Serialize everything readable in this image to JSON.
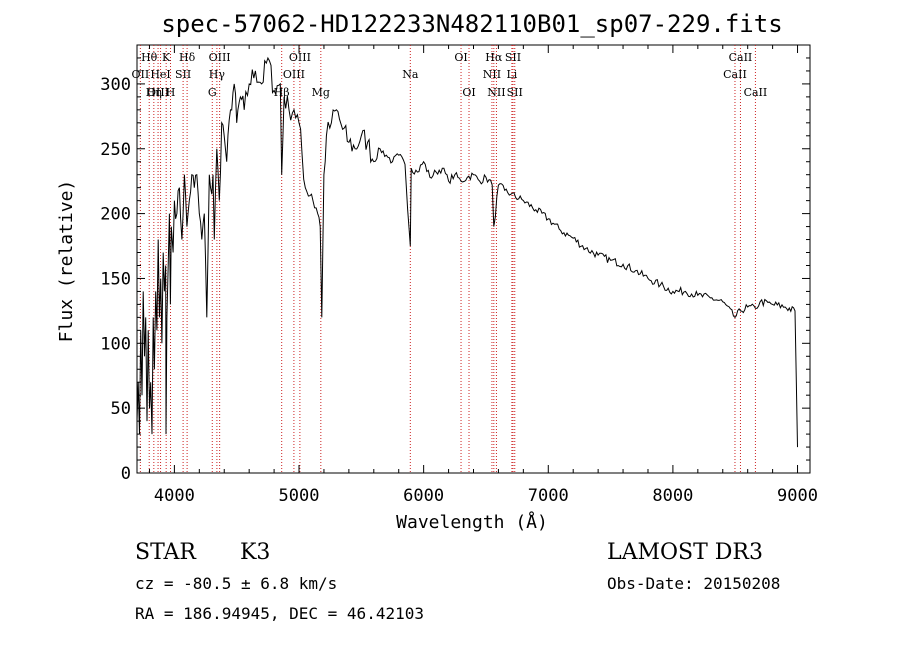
{
  "chart_data": {
    "type": "line",
    "title": "spec-57062-HD122233N482110B01_sp07-229.fits",
    "xlabel": "Wavelength (Å)",
    "ylabel": "Flux (relative)",
    "xlim": [
      3700,
      9100
    ],
    "ylim": [
      0,
      330
    ],
    "xticks": [
      4000,
      5000,
      6000,
      7000,
      8000,
      9000
    ],
    "yticks": [
      0,
      50,
      100,
      150,
      200,
      250,
      300
    ],
    "grid": false,
    "series": [
      {
        "name": "flux",
        "x": [
          3700,
          3710,
          3720,
          3730,
          3740,
          3750,
          3760,
          3770,
          3780,
          3790,
          3800,
          3810,
          3820,
          3830,
          3840,
          3850,
          3860,
          3870,
          3880,
          3890,
          3900,
          3910,
          3920,
          3930,
          3933,
          3940,
          3950,
          3960,
          3968,
          3975,
          3990,
          4000,
          4020,
          4040,
          4060,
          4080,
          4100,
          4120,
          4140,
          4160,
          4180,
          4200,
          4220,
          4240,
          4260,
          4280,
          4300,
          4310,
          4320,
          4340,
          4360,
          4380,
          4400,
          4420,
          4450,
          4480,
          4500,
          4530,
          4560,
          4600,
          4650,
          4700,
          4750,
          4800,
          4850,
          4861,
          4880,
          4920,
          4960,
          5000,
          5050,
          5100,
          5150,
          5170,
          5183,
          5200,
          5220,
          5260,
          5300,
          5350,
          5400,
          5450,
          5500,
          5550,
          5600,
          5650,
          5700,
          5750,
          5800,
          5850,
          5893,
          5900,
          5950,
          6000,
          6050,
          6100,
          6150,
          6200,
          6250,
          6300,
          6350,
          6400,
          6450,
          6500,
          6550,
          6563,
          6600,
          6650,
          6700,
          6800,
          6900,
          7000,
          7100,
          7200,
          7300,
          7400,
          7500,
          7600,
          7700,
          7800,
          7900,
          8000,
          8100,
          8200,
          8300,
          8400,
          8498,
          8542,
          8600,
          8662,
          8700,
          8800,
          8900,
          8980,
          9000
        ],
        "values": [
          40,
          70,
          30,
          110,
          60,
          140,
          90,
          120,
          40,
          110,
          50,
          70,
          30,
          120,
          80,
          140,
          110,
          180,
          120,
          150,
          100,
          170,
          140,
          160,
          30,
          120,
          160,
          200,
          130,
          190,
          170,
          210,
          200,
          220,
          180,
          230,
          190,
          210,
          230,
          220,
          230,
          200,
          180,
          200,
          120,
          230,
          215,
          230,
          180,
          250,
          210,
          270,
          260,
          240,
          280,
          300,
          270,
          290,
          280,
          300,
          310,
          300,
          320,
          295,
          300,
          230,
          290,
          280,
          280,
          270,
          220,
          215,
          200,
          190,
          120,
          230,
          260,
          270,
          280,
          265,
          255,
          250,
          260,
          255,
          240,
          250,
          245,
          240,
          245,
          238,
          175,
          235,
          232,
          240,
          228,
          232,
          235,
          225,
          230,
          225,
          228,
          230,
          225,
          228,
          222,
          190,
          222,
          218,
          215,
          210,
          203,
          196,
          187,
          181,
          173,
          168,
          164,
          161,
          156,
          150,
          145,
          140,
          140,
          137,
          135,
          132,
          120,
          125,
          128,
          127,
          132,
          130,
          128,
          125,
          20
        ]
      }
    ],
    "lines": [
      {
        "label": "Hθ",
        "x": 3798,
        "row": 1
      },
      {
        "label": "OII",
        "x": 3727,
        "row": 2
      },
      {
        "label": "OIII",
        "x": 3869,
        "row": 3
      },
      {
        "label": "Hη",
        "x": 3835,
        "row": 3
      },
      {
        "label": "HeI",
        "x": 3889,
        "row": 2
      },
      {
        "label": "K",
        "x": 3934,
        "row": 1
      },
      {
        "label": "H",
        "x": 3969,
        "row": 3
      },
      {
        "label": "SII",
        "x": 4070,
        "row": 2
      },
      {
        "label": "Hδ",
        "x": 4102,
        "row": 1
      },
      {
        "label": "OIII",
        "x": 4363,
        "row": 1
      },
      {
        "label": "Hγ",
        "x": 4341,
        "row": 2
      },
      {
        "label": "G",
        "x": 4304,
        "row": 3
      },
      {
        "label": "Hβ",
        "x": 4861,
        "row": 3
      },
      {
        "label": "OIII",
        "x": 4959,
        "row": 2
      },
      {
        "label": "OIII",
        "x": 5007,
        "row": 1
      },
      {
        "label": "Mg",
        "x": 5175,
        "row": 3
      },
      {
        "label": "Na",
        "x": 5893,
        "row": 2
      },
      {
        "label": "OI",
        "x": 6300,
        "row": 1
      },
      {
        "label": "OI",
        "x": 6364,
        "row": 3
      },
      {
        "label": "NII",
        "x": 6548,
        "row": 2
      },
      {
        "label": "Hα",
        "x": 6563,
        "row": 1
      },
      {
        "label": "NII",
        "x": 6584,
        "row": 3
      },
      {
        "label": "SII",
        "x": 6717,
        "row": 1
      },
      {
        "label": "Li",
        "x": 6708,
        "row": 2
      },
      {
        "label": "SII",
        "x": 6731,
        "row": 3
      },
      {
        "label": "CaII",
        "x": 8498,
        "row": 2
      },
      {
        "label": "CaII",
        "x": 8542,
        "row": 1
      },
      {
        "label": "CaII",
        "x": 8662,
        "row": 3
      }
    ]
  },
  "info": {
    "class_label": "STAR",
    "subclass": "K3",
    "survey": "LAMOST DR3",
    "cz": "cz = -80.5 ± 6.8 km/s",
    "obs_date": "Obs-Date: 20150208",
    "coords": "RA = 186.94945, DEC =  46.42103"
  }
}
